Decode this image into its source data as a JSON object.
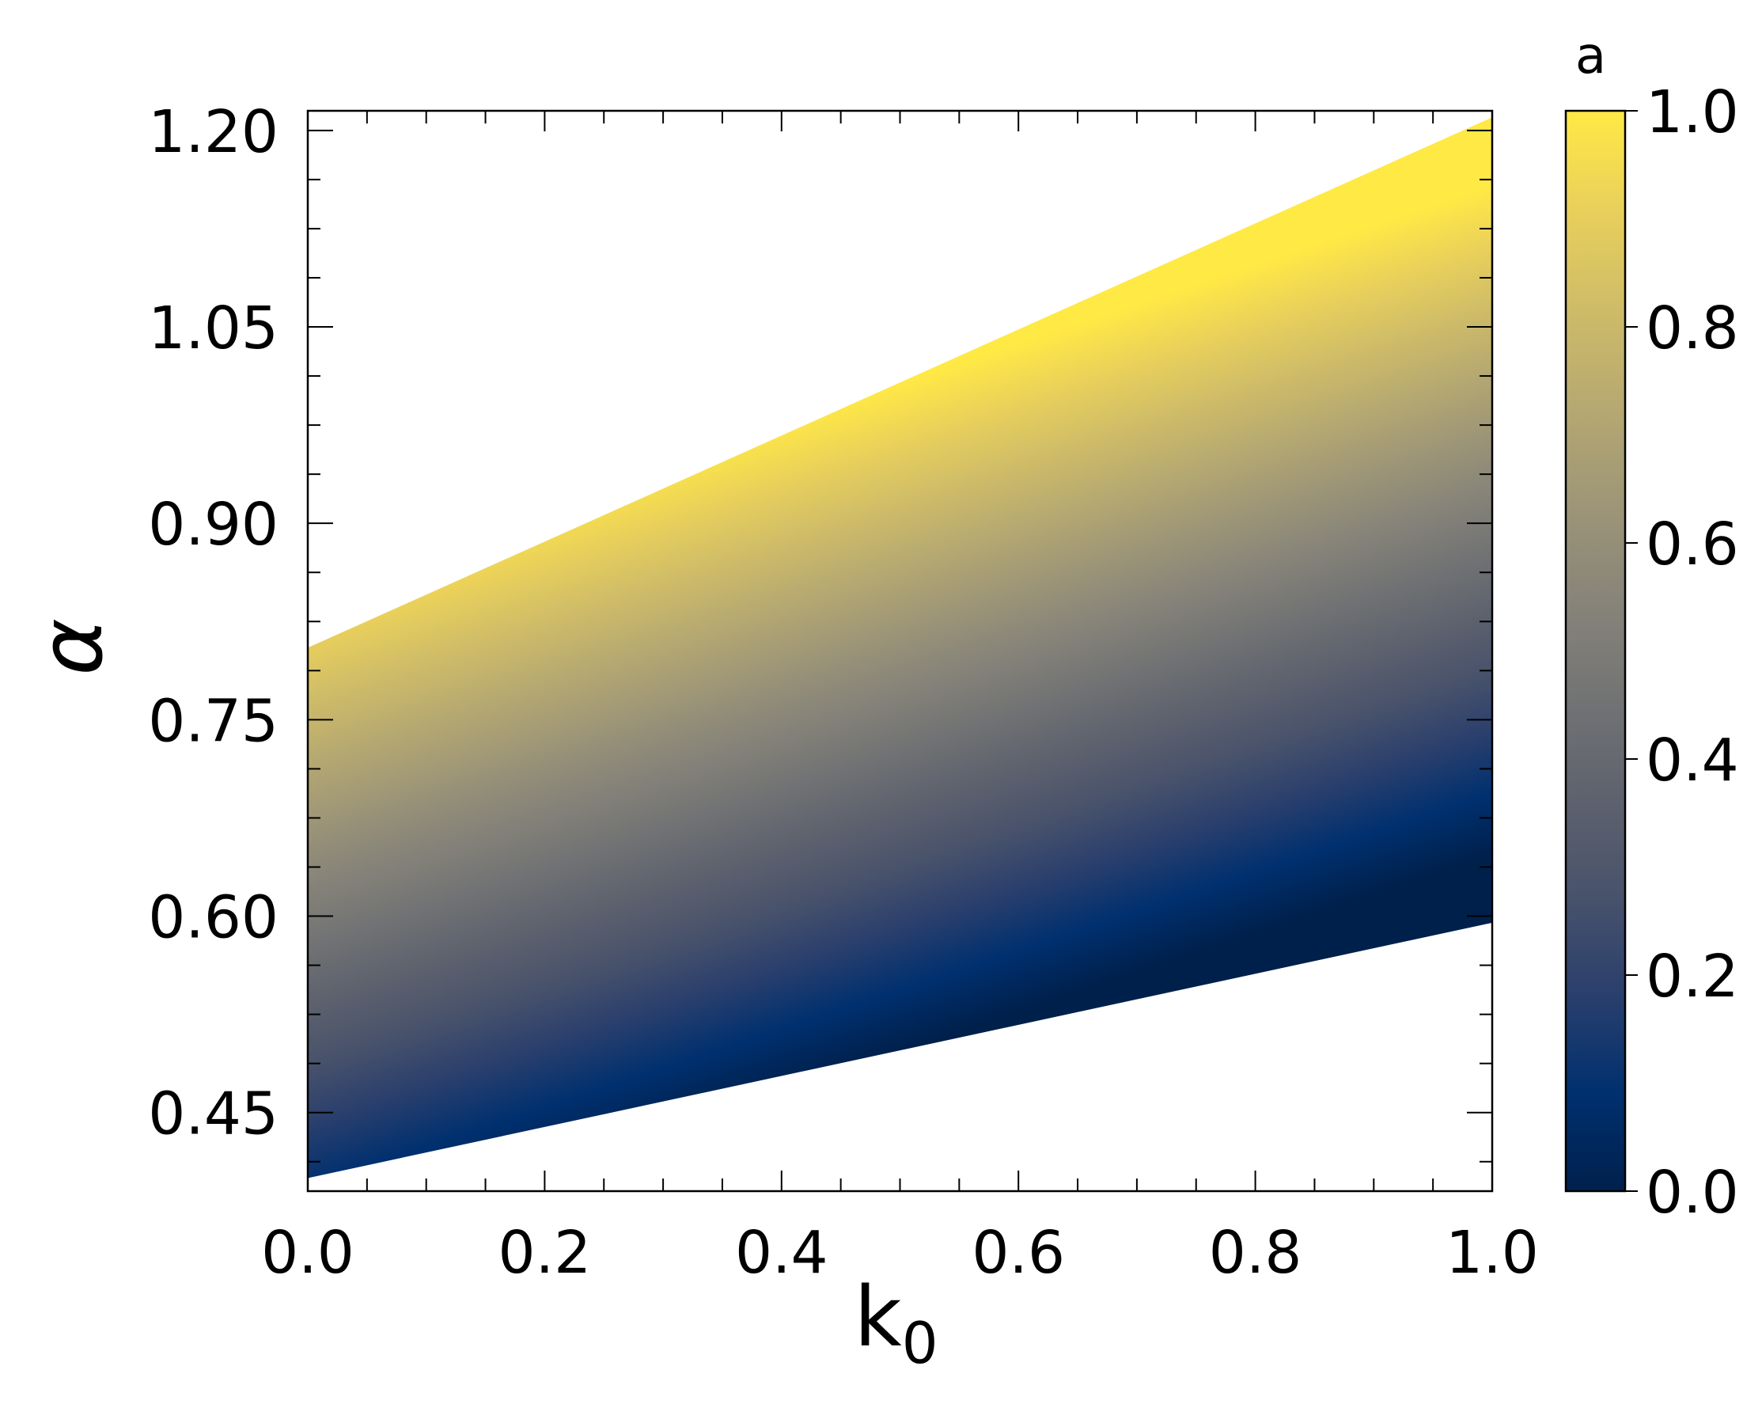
{
  "chart_data": {
    "type": "heatmap",
    "xlabel": "k",
    "xlabel_sub": "0",
    "ylabel": "α",
    "xlim": [
      0.0,
      1.0
    ],
    "ylim": [
      0.39,
      1.215
    ],
    "x_ticks": [
      "0.0",
      "0.2",
      "0.4",
      "0.6",
      "0.8",
      "1.0"
    ],
    "x_tick_values": [
      0.0,
      0.2,
      0.4,
      0.6,
      0.8,
      1.0
    ],
    "x_minor_step": 0.05,
    "y_ticks": [
      "0.45",
      "0.60",
      "0.75",
      "0.90",
      "1.05",
      "1.20"
    ],
    "y_tick_values": [
      0.45,
      0.6,
      0.75,
      0.9,
      1.05,
      1.2
    ],
    "y_minor_step": 0.0375,
    "region": {
      "lower_edge": [
        [
          0.0,
          0.4
        ],
        [
          1.0,
          0.595
        ]
      ],
      "upper_edge": [
        [
          0.0,
          0.805
        ],
        [
          1.0,
          1.21
        ]
      ],
      "value_at_lower_edge": 0.0,
      "value_at_upper_edge": 1.0
    },
    "colorbar": {
      "title": "a",
      "range": [
        0.0,
        1.0
      ],
      "ticks": [
        "0.0",
        "0.2",
        "0.4",
        "0.6",
        "0.8",
        "1.0"
      ],
      "tick_values": [
        0.0,
        0.2,
        0.4,
        0.6,
        0.8,
        1.0
      ],
      "colormap": "cividis",
      "colors": [
        "#00204c",
        "#00306f",
        "#2a3f6d",
        "#48526b",
        "#5e626e",
        "#727374",
        "#878479",
        "#9e9677",
        "#b6a971",
        "#cfbc68",
        "#e9d05b",
        "#ffe945"
      ]
    },
    "grid": false,
    "ticks_direction": "in"
  }
}
